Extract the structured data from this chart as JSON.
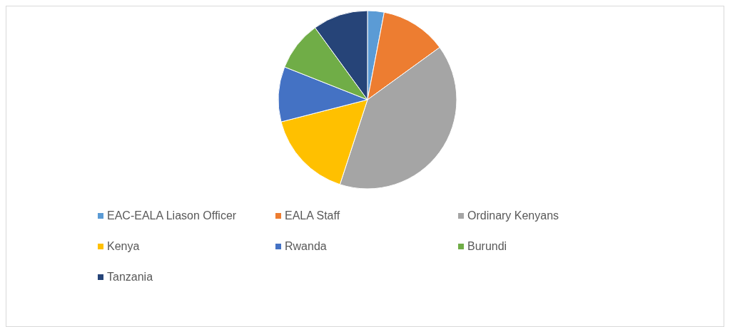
{
  "chart_data": {
    "type": "pie",
    "categories": [
      "EAC-EALA Liason Officer",
      "EALA Staff",
      "Ordinary Kenyans",
      "Kenya",
      "Rwanda",
      "Burundi",
      "Tanzania"
    ],
    "values": [
      3,
      12,
      40,
      16,
      10,
      9,
      10
    ],
    "colors": [
      "#5b9bd5",
      "#ed7d31",
      "#a5a5a5",
      "#ffc000",
      "#4472c4",
      "#70ad47",
      "#264478"
    ],
    "legend": "bottom"
  }
}
